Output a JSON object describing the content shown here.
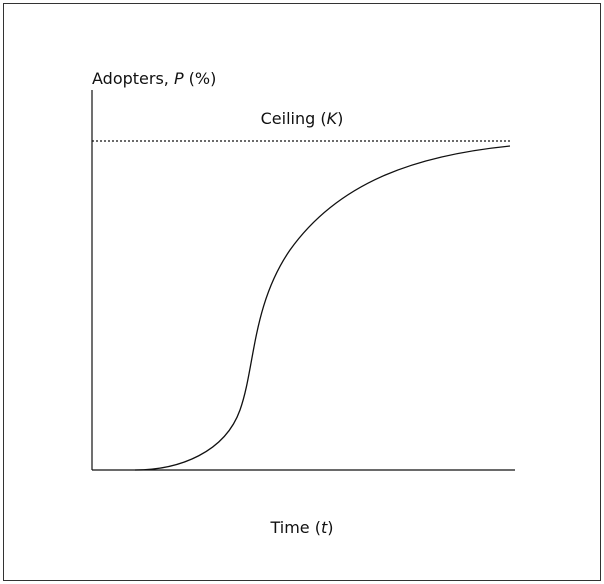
{
  "y_label": {
    "text": "Adopters, ",
    "variable": "P",
    "unit": "(%)"
  },
  "ceiling_label": {
    "text": "Ceiling (",
    "variable": "K",
    "close": ")"
  },
  "x_label": {
    "text": "Time (",
    "variable": "t",
    "close": ")"
  }
}
